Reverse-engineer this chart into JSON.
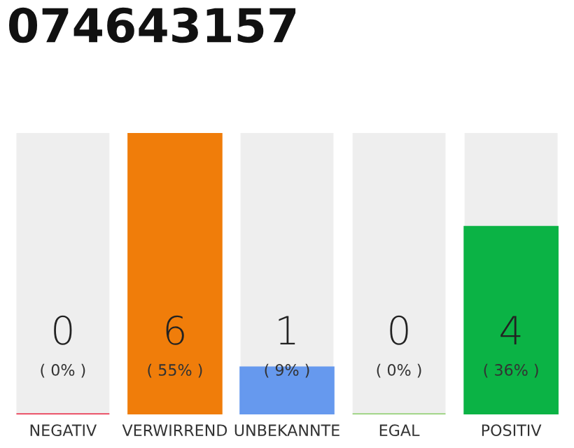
{
  "chart_data": {
    "type": "bar",
    "title": "074643157",
    "categories": [
      "NEGATIV",
      "VERWIRREND",
      "UNBEKANNTE",
      "EGAL",
      "POSITIV"
    ],
    "values": [
      0,
      6,
      1,
      0,
      4
    ],
    "colors": [
      "#e8203c",
      "#f07d0a",
      "#6699ee",
      "#88cc66",
      "#0bb345"
    ],
    "value_labels": [
      "0\n( 0% )",
      "6\n( 55% )",
      "1\n( 9% )",
      "0\n( 0% )",
      "4\n( 36% )"
    ],
    "ylim": [
      0,
      6
    ],
    "grid": false,
    "legend": false
  }
}
